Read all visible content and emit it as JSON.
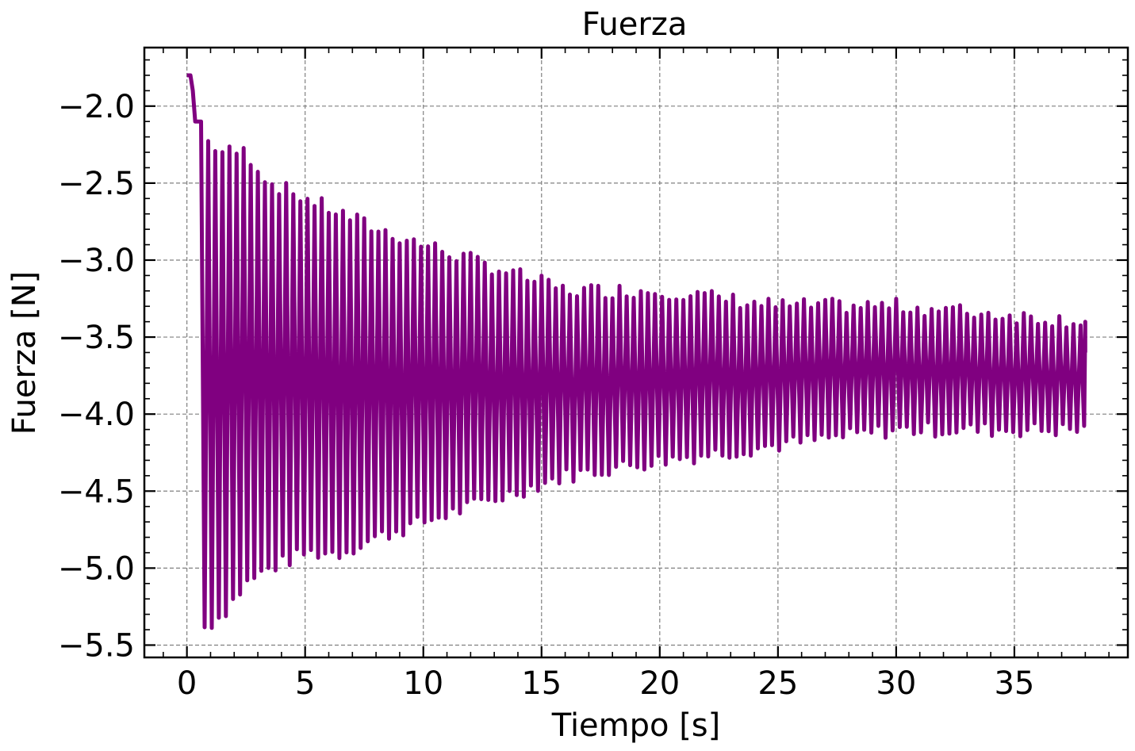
{
  "chart_data": {
    "type": "line",
    "title": "Fuerza",
    "xlabel": "Tiempo [s]",
    "ylabel": "Fuerza [N]",
    "xlim": [
      -1.8,
      39.8
    ],
    "ylim": [
      -5.58,
      -1.62
    ],
    "x_ticks": [
      0,
      5,
      10,
      15,
      20,
      25,
      30,
      35
    ],
    "y_ticks": [
      -2.0,
      -2.5,
      -3.0,
      -3.5,
      -4.0,
      -4.5,
      -5.0,
      -5.5
    ],
    "x_tick_labels": [
      "0",
      "5",
      "10",
      "15",
      "20",
      "25",
      "30",
      "35"
    ],
    "y_tick_labels": [
      "−2.0",
      "−2.5",
      "−3.0",
      "−3.5",
      "−4.0",
      "−4.5",
      "−5.0",
      "−5.5"
    ],
    "grid": true,
    "ticks_direction": "in",
    "series": [
      {
        "color": "#800080",
        "description": "Damped oscillation of force; initial values near -1.8 N until ~0.6 s, then oscillation between envelopes decaying from about [-2.2, -5.4] N toward about [-3.4, -4.1] N by 38 s.",
        "initial": [
          [
            0.0,
            -1.8
          ],
          [
            0.15,
            -1.8
          ],
          [
            0.25,
            -1.9
          ],
          [
            0.35,
            -2.1
          ],
          [
            0.6,
            -2.1
          ]
        ],
        "oscillation_start": 0.6,
        "oscillation_end": 38.0,
        "period_s": 0.3,
        "envelope": [
          {
            "t": 0.6,
            "max": -2.2,
            "min": -5.4
          },
          {
            "t": 1.5,
            "max": -2.3,
            "min": -5.3
          },
          {
            "t": 2.5,
            "max": -2.3,
            "min": -5.1
          },
          {
            "t": 3.5,
            "max": -2.5,
            "min": -5.0
          },
          {
            "t": 5.0,
            "max": -2.6,
            "min": -4.9
          },
          {
            "t": 6.5,
            "max": -2.7,
            "min": -4.9
          },
          {
            "t": 8.0,
            "max": -2.8,
            "min": -4.8
          },
          {
            "t": 10.0,
            "max": -2.9,
            "min": -4.7
          },
          {
            "t": 12.0,
            "max": -3.0,
            "min": -4.6
          },
          {
            "t": 14.0,
            "max": -3.1,
            "min": -4.5
          },
          {
            "t": 16.0,
            "max": -3.2,
            "min": -4.4
          },
          {
            "t": 20.0,
            "max": -3.2,
            "min": -4.3
          },
          {
            "t": 25.0,
            "max": -3.3,
            "min": -4.2
          },
          {
            "t": 30.0,
            "max": -3.3,
            "min": -4.1
          },
          {
            "t": 38.0,
            "max": -3.4,
            "min": -4.1
          }
        ],
        "end_value": -3.6
      }
    ]
  }
}
